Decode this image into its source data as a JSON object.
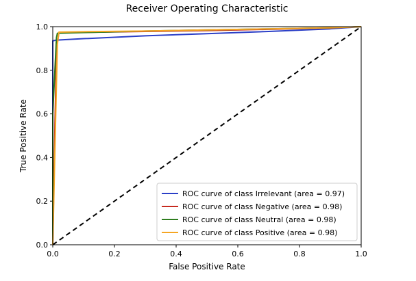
{
  "chart_data": {
    "type": "line",
    "title": "Receiver Operating Characteristic",
    "xlabel": "False Positive Rate",
    "ylabel": "True Positive Rate",
    "xlim": [
      0.0,
      1.0
    ],
    "ylim": [
      0.0,
      1.0
    ],
    "xticks": [
      "0.0",
      "0.2",
      "0.4",
      "0.6",
      "0.8",
      "1.0"
    ],
    "yticks": [
      "0.0",
      "0.2",
      "0.4",
      "0.6",
      "0.8",
      "1.0"
    ],
    "grid": false,
    "legend_position": "lower-right",
    "series": [
      {
        "name": "ROC curve of class Irrelevant (area = 0.97)",
        "color": "#2b3fc7",
        "x": [
          0.0,
          0.0,
          0.01,
          0.1,
          0.3,
          0.5,
          0.7,
          0.9,
          1.0
        ],
        "y": [
          0.0,
          0.935,
          0.938,
          0.945,
          0.958,
          0.968,
          0.978,
          0.99,
          1.0
        ]
      },
      {
        "name": "ROC curve of class Negative (area = 0.98)",
        "color": "#c62a1f",
        "x": [
          0.0,
          0.005,
          0.012,
          0.02,
          0.1,
          0.3,
          0.5,
          0.7,
          0.9,
          1.0
        ],
        "y": [
          0.0,
          0.4,
          0.9,
          0.972,
          0.974,
          0.978,
          0.982,
          0.988,
          0.994,
          1.0
        ]
      },
      {
        "name": "ROC curve of class Neutral (area = 0.98)",
        "color": "#2e7d1e",
        "x": [
          0.0,
          0.0,
          0.012,
          0.015,
          0.1,
          0.3,
          0.5,
          0.7,
          0.9,
          1.0
        ],
        "y": [
          0.0,
          0.6,
          0.95,
          0.97,
          0.973,
          0.98,
          0.985,
          0.99,
          0.995,
          1.0
        ]
      },
      {
        "name": "ROC curve of class Positive (area = 0.98)",
        "color": "#f5a623",
        "x": [
          0.0,
          0.008,
          0.015,
          0.02,
          0.1,
          0.3,
          0.5,
          0.7,
          0.9,
          1.0
        ],
        "y": [
          0.0,
          0.5,
          0.92,
          0.975,
          0.977,
          0.98,
          0.985,
          0.99,
          0.995,
          1.0
        ]
      }
    ],
    "reference_line": {
      "style": "dashed",
      "color": "#000000",
      "x": [
        0.0,
        1.0
      ],
      "y": [
        0.0,
        1.0
      ]
    }
  }
}
